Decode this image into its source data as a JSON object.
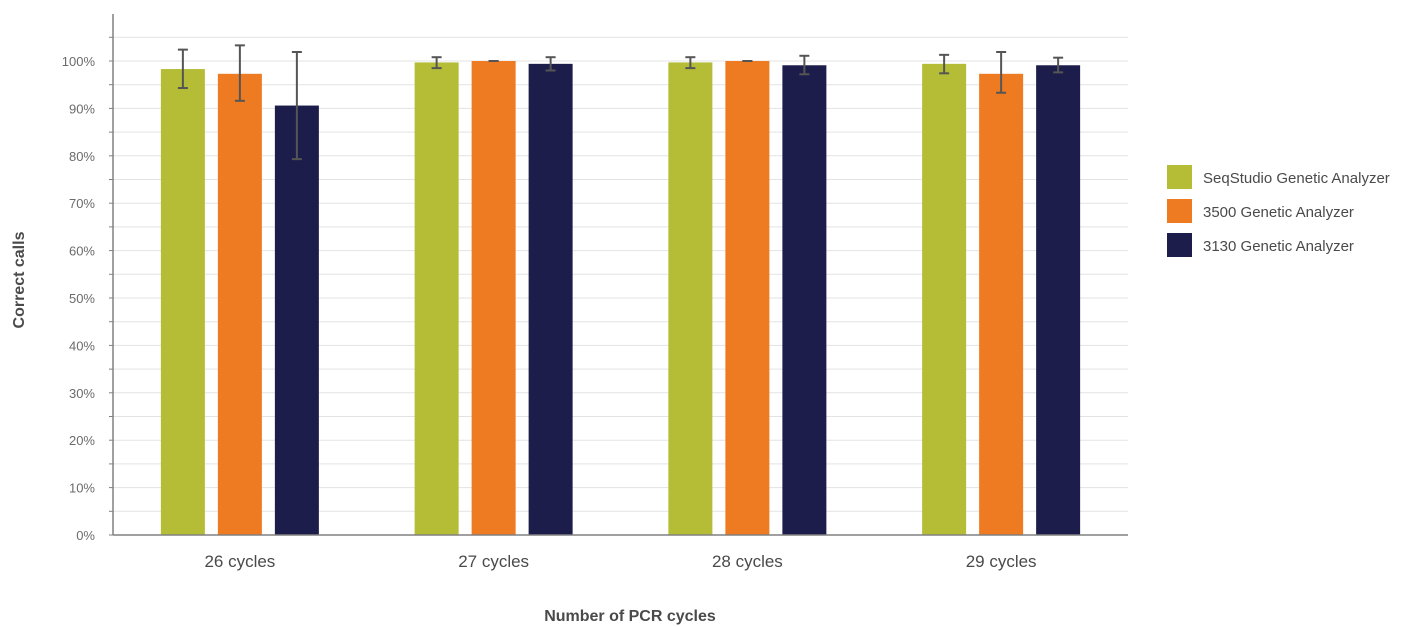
{
  "chart_data": {
    "type": "bar",
    "xlabel": "Number of PCR cycles",
    "ylabel": "Correct calls",
    "ylim": [
      0,
      100
    ],
    "y_ticks": [
      "0%",
      "10%",
      "20%",
      "30%",
      "40%",
      "50%",
      "60%",
      "70%",
      "80%",
      "90%",
      "100%"
    ],
    "y_tick_values": [
      0,
      10,
      20,
      30,
      40,
      50,
      60,
      70,
      80,
      90,
      100
    ],
    "grid": true,
    "legend_position": "right",
    "categories": [
      "26 cycles",
      "27 cycles",
      "28 cycles",
      "29 cycles"
    ],
    "series": [
      {
        "name": "SeqStudio Genetic Analyzer",
        "color": "#b4bd35",
        "values": [
          98.3,
          99.7,
          99.7,
          99.4
        ],
        "error_low": [
          94.3,
          98.5,
          98.5,
          97.4
        ],
        "error_high": [
          102.4,
          100.8,
          100.8,
          101.3
        ]
      },
      {
        "name": "3500 Genetic Analyzer",
        "color": "#ee7b22",
        "values": [
          97.3,
          100,
          100,
          97.3
        ],
        "error_low": [
          91.6,
          100,
          100,
          93.3
        ],
        "error_high": [
          103.3,
          100,
          100,
          101.9
        ]
      },
      {
        "name": "3130 Genetic Analyzer",
        "color": "#1c1d4a",
        "values": [
          90.6,
          99.4,
          99.1,
          99.1
        ],
        "error_low": [
          79.3,
          98.0,
          97.2,
          97.6
        ],
        "error_high": [
          101.9,
          100.8,
          101.1,
          100.7
        ]
      }
    ]
  }
}
